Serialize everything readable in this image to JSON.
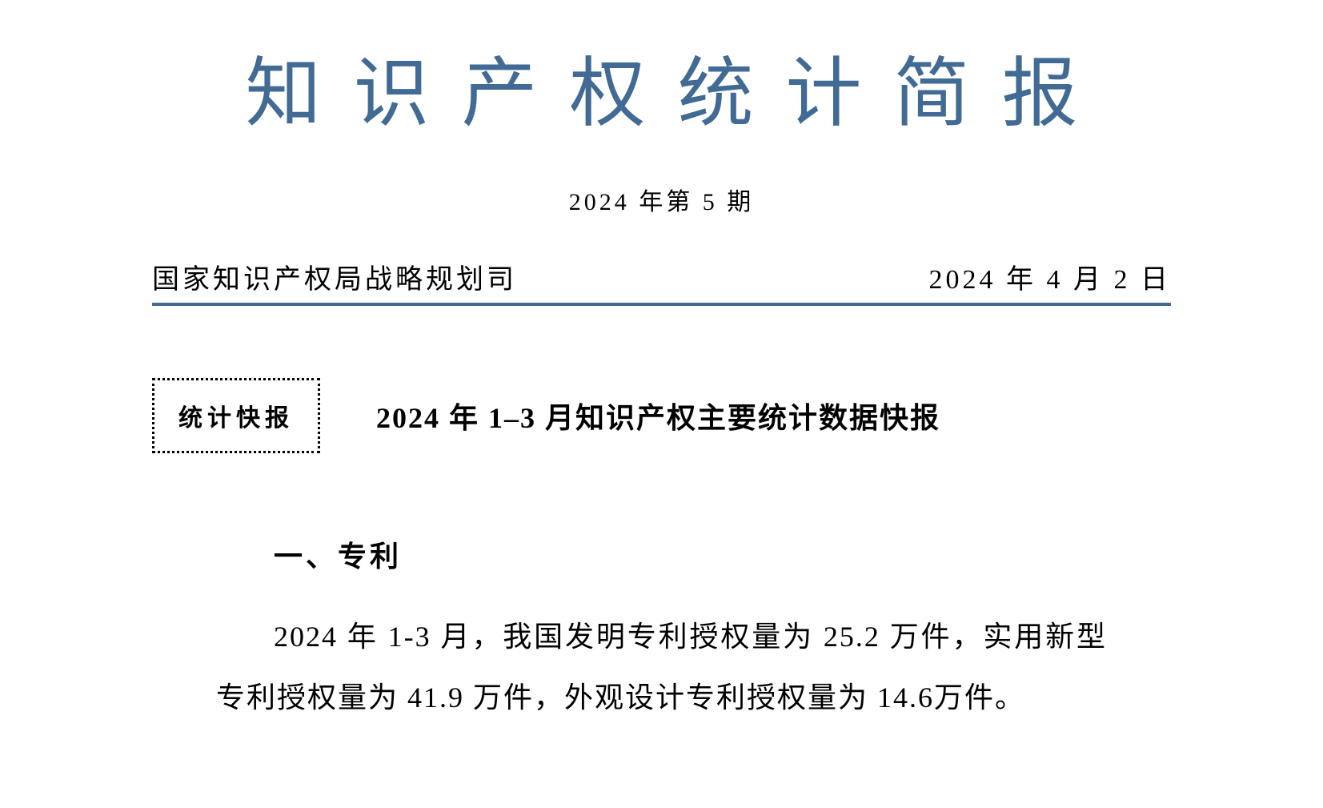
{
  "title": {
    "text": "知识产权统计简报",
    "color": "#416a94",
    "fontsize": 95,
    "letter_spacing": 40
  },
  "issue": {
    "text": "2024 年第 5 期",
    "fontsize": 30
  },
  "header": {
    "org": "国家知识产权局战略规划司",
    "date": "2024 年 4 月 2 日",
    "fontsize": 34
  },
  "divider": {
    "color": "#416a94",
    "thickness": 4
  },
  "badge": {
    "text": "统计快报",
    "border_style": "dotted",
    "border_color": "#000000",
    "fontsize": 30
  },
  "section_title": {
    "text": "2024 年 1–3 月知识产权主要统计数据快报",
    "fontsize": 36
  },
  "subsection": {
    "text": "一、专利",
    "fontsize": 36
  },
  "body": {
    "text": "2024 年 1-3 月，我国发明专利授权量为 25.2 万件，实用新型专利授权量为 41.9 万件，外观设计专利授权量为 14.6万件。",
    "fontsize": 36,
    "line_height": 2.1
  },
  "background_color": "#ffffff"
}
